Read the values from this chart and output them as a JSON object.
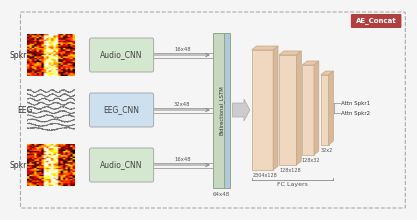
{
  "bg_color": "#f5f5f5",
  "title_box": "AE_Concat",
  "title_box_color": "#b04040",
  "title_box_text_color": "#ffffff",
  "spkr1_label": "Spkr1",
  "eeg_label": "EEG",
  "spkr2_label": "Spkr2",
  "audio_cnn_label": "Audio_CNN",
  "eeg_cnn_label": "EEG_CNN",
  "lstm_label": "Bidirectional_LSTM",
  "fc_label": "FC Layers",
  "arrow_label_1": "16x48",
  "arrow_label_2": "32x48",
  "arrow_label_3": "16x48",
  "bottom_label": "64x48",
  "dim_label_1": "2304x128",
  "dim_label_2": "128x128",
  "dim_label_3": "128x32",
  "dim_label_4": "32x2",
  "output_label_1": "Attn Spkr1",
  "output_label_2": "Attn Spkr2",
  "audio_cnn_color": "#d4e8d0",
  "eeg_cnn_color": "#cce0f0",
  "lstm_color_main": "#c8d8c0",
  "lstm_color_side": "#b0c8d8",
  "fc_layer_color_front": "#f0d8c0",
  "fc_layer_color_top": "#e8c8a8",
  "fc_layer_color_right": "#d8b898"
}
